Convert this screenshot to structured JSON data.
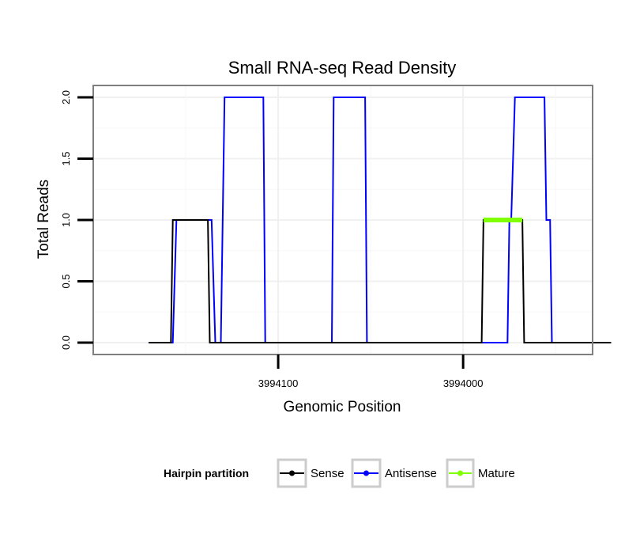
{
  "chart_data": {
    "type": "line",
    "title": "Small RNA-seq Read Density",
    "xlabel": "Genomic Position",
    "ylabel": "Total Reads",
    "xlim": [
      3994200,
      3993930
    ],
    "x_reversed": true,
    "ylim": [
      0,
      2
    ],
    "y_ticks": [
      {
        "value": 0,
        "label": "0.0"
      },
      {
        "value": 0.5,
        "label": "0.5"
      },
      {
        "value": 1,
        "label": "1.0"
      },
      {
        "value": 1.5,
        "label": "1.5"
      },
      {
        "value": 2,
        "label": "2.0"
      }
    ],
    "x_ticks": [
      {
        "value": 3994100,
        "label": "3994100"
      },
      {
        "value": 3994000,
        "label": "3994000"
      }
    ],
    "grid": true,
    "series": [
      {
        "name": "Sense",
        "color": "#000000",
        "stroke_width": 2,
        "x": [
          3994170,
          3994158,
          3994157,
          3994138,
          3994137,
          3993990,
          3993989,
          3993968,
          3993967,
          3993920
        ],
        "y": [
          0,
          0,
          1,
          1,
          0,
          0,
          1,
          1,
          0,
          0
        ]
      },
      {
        "name": "Antisense",
        "color": "#0000ff",
        "stroke_width": 2,
        "x": [
          3994170,
          3994157,
          3994155,
          3994136,
          3994134,
          3994131,
          3994129,
          3994108,
          3994107,
          3994071,
          3994070,
          3994053,
          3994052,
          3994036,
          3994035,
          3993976,
          3993975,
          3993974,
          3993972,
          3993956,
          3993955,
          3993953,
          3993952,
          3993920
        ],
        "y": [
          0,
          0,
          1,
          1,
          0,
          0,
          2,
          2,
          0,
          0,
          2,
          2,
          0,
          0,
          0,
          0,
          1,
          1,
          2,
          2,
          1,
          1,
          0,
          0
        ]
      },
      {
        "name": "Mature",
        "color": "#80ff00",
        "stroke_width": 6,
        "x": [
          3993989,
          3993968
        ],
        "y": [
          1,
          1
        ]
      }
    ],
    "legend": {
      "title": "Hairpin partition",
      "position": "bottom",
      "entries": [
        {
          "label": "Sense",
          "color": "#000000"
        },
        {
          "label": "Antisense",
          "color": "#0000ff"
        },
        {
          "label": "Mature",
          "color": "#80ff00"
        }
      ]
    }
  }
}
